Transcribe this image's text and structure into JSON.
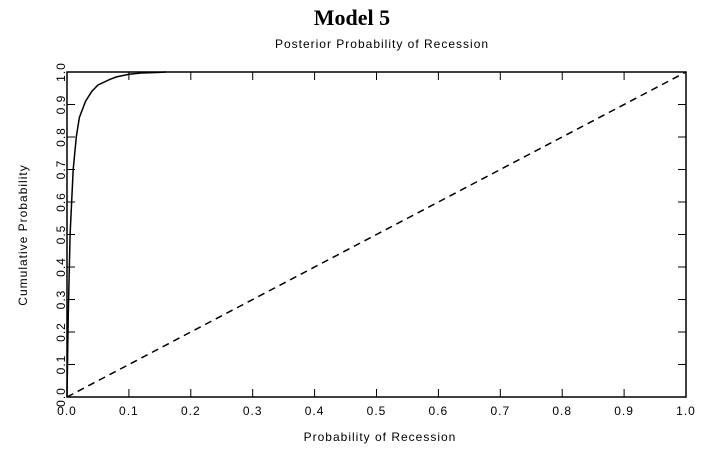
{
  "chart_data": {
    "type": "line",
    "title": "Model 5",
    "subtitle": "Posterior Probability of Recession",
    "x_label": "Probability of Recession",
    "y_label": "Cumulative Probability",
    "xlim": [
      0,
      1
    ],
    "ylim": [
      0,
      1
    ],
    "xticks": [
      {
        "value": 0,
        "label": "0.0"
      },
      0.1,
      0.2,
      0.3,
      0.4,
      0.5,
      0.6,
      0.7,
      0.8,
      0.9,
      {
        "value": 1,
        "label": "1.0"
      }
    ],
    "yticks": [
      {
        "value": 0,
        "label": "0.0"
      },
      0.1,
      0.2,
      0.3,
      0.4,
      0.5,
      0.6,
      0.7,
      0.8,
      0.9,
      {
        "value": 1,
        "label": "1.0"
      }
    ],
    "series": [
      {
        "color": "#000000",
        "dashed": false,
        "x": [
          0,
          0.002,
          0.005,
          0.01,
          0.015,
          0.02,
          0.03,
          0.04,
          0.05,
          0.07,
          0.08,
          0.1,
          0.12,
          0.15,
          0.16
        ],
        "values": [
          0,
          0.25,
          0.5,
          0.7,
          0.8,
          0.86,
          0.91,
          0.94,
          0.96,
          0.978,
          0.985,
          0.993,
          0.997,
          0.999,
          1
        ]
      },
      {
        "color": "#000000",
        "dashed": true,
        "x": [
          0,
          1
        ],
        "values": [
          0,
          1
        ]
      }
    ]
  }
}
